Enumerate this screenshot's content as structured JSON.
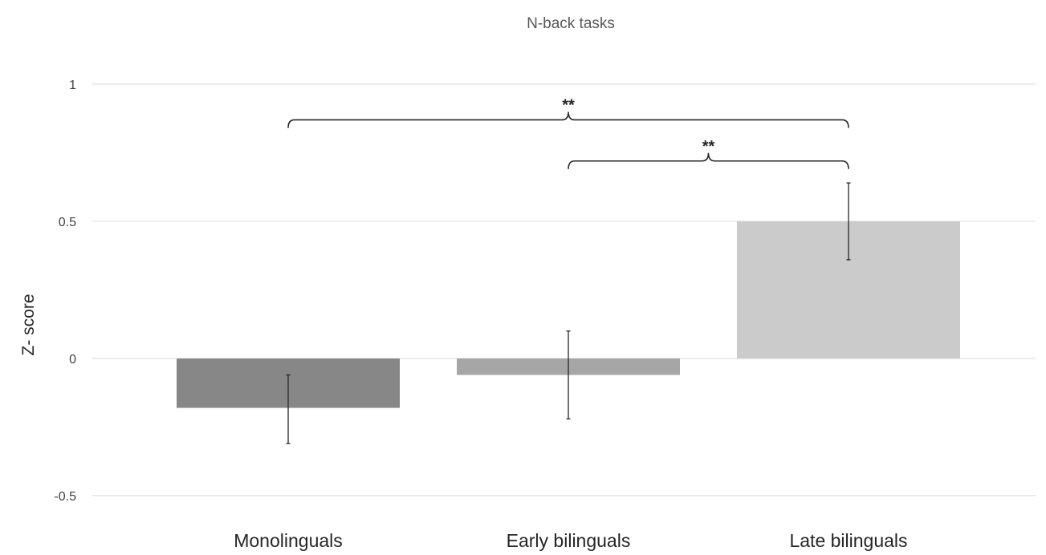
{
  "chart_data": {
    "type": "bar",
    "title": "N-back tasks",
    "xlabel": "",
    "ylabel": "Z- score",
    "ylim": [
      -0.5,
      1
    ],
    "yticks": [
      {
        "value": 1,
        "label": "1"
      },
      {
        "value": 0.5,
        "label": "0.5"
      },
      {
        "value": 0,
        "label": "0"
      },
      {
        "value": -0.5,
        "label": "-0.5"
      }
    ],
    "grid": true,
    "categories": [
      "Monolinguals",
      "Early bilinguals",
      "Late bilinguals"
    ],
    "values": [
      -0.18,
      -0.06,
      0.5
    ],
    "error_low": [
      -0.31,
      -0.22,
      0.36
    ],
    "error_high": [
      -0.06,
      0.1,
      0.64
    ],
    "colors": [
      "#878787",
      "#a6a6a6",
      "#cbcbcb"
    ],
    "annotations": [
      {
        "from": "Monolinguals",
        "to": "Late bilinguals",
        "label": "**",
        "y": 0.87
      },
      {
        "from": "Early bilinguals",
        "to": "Late bilinguals",
        "label": "**",
        "y": 0.72
      }
    ]
  }
}
